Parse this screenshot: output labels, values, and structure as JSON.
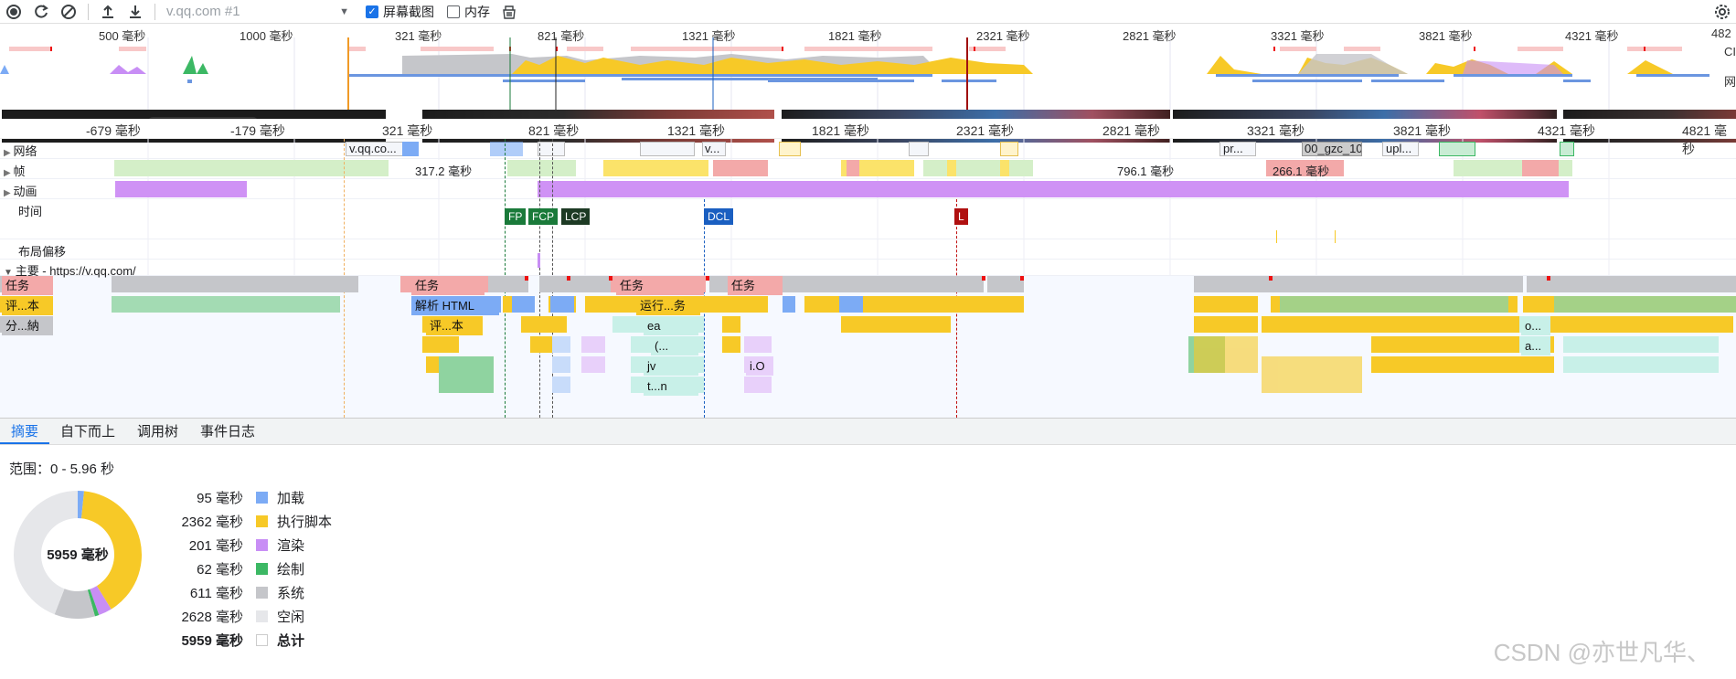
{
  "toolbar": {
    "url_select": "v.qq.com #1",
    "screenshots_label": "屏幕截图",
    "screenshots_checked": true,
    "memory_label": "内存",
    "memory_checked": false
  },
  "overview": {
    "ticks": [
      "500 毫秒",
      "1000 毫秒",
      "321 毫秒",
      "821 毫秒",
      "1321 毫秒",
      "1821 毫秒",
      "2321 毫秒",
      "2821 毫秒",
      "3321 毫秒",
      "3821 毫秒",
      "4321 毫秒",
      "482"
    ],
    "right_labels": [
      "CI",
      "网"
    ]
  },
  "main_ruler": {
    "ticks": [
      "-679 毫秒",
      "-179 毫秒",
      "321 毫秒",
      "821 毫秒",
      "1321 毫秒",
      "1821 毫秒",
      "2321 毫秒",
      "2821 毫秒",
      "3321 毫秒",
      "3821 毫秒",
      "4321 毫秒",
      "4821 毫秒"
    ]
  },
  "tracks": {
    "network": "网络",
    "frames": "帧",
    "animations": "动画",
    "timings": "时间",
    "layout_shifts": "布局偏移",
    "main": "主要 - https://v.qq.com/"
  },
  "network_items": [
    "v.qq.co...",
    "v...",
    "pr...",
    "00_gzc_10",
    "upl..."
  ],
  "frame_labels": [
    "317.2 毫秒",
    "796.1 毫秒",
    "266.1 毫秒"
  ],
  "markers": [
    "FP",
    "FCP",
    "LCP",
    "DCL",
    "L"
  ],
  "flame": {
    "task": "任务",
    "eval_short": "评...本",
    "gc_short": "分...納",
    "parse_html": "解析 HTML",
    "run_short": "运行...务",
    "eval2": "评...本",
    "ea": "ea",
    "paren": "(...",
    "jv": "jv",
    "tn": "t...n",
    "io": "i.O",
    "o_short": "o...",
    "a_short": "a..."
  },
  "tabs": [
    "摘要",
    "自下而上",
    "调用树",
    "事件日志"
  ],
  "summary": {
    "range": "范围：0 - 5.96 秒",
    "total_center": "5959 毫秒",
    "rows": [
      {
        "value": "95 毫秒",
        "label": "加载",
        "color": "#7cabf5"
      },
      {
        "value": "2362 毫秒",
        "label": "执行脚本",
        "color": "#f7c927"
      },
      {
        "value": "201 毫秒",
        "label": "渲染",
        "color": "#c88ef5"
      },
      {
        "value": "62 毫秒",
        "label": "绘制",
        "color": "#3cb864"
      },
      {
        "value": "611 毫秒",
        "label": "系统",
        "color": "#c5c6ca"
      },
      {
        "value": "2628 毫秒",
        "label": "空闲",
        "color": "#e6e7ea"
      },
      {
        "value": "5959 毫秒",
        "label": "总计",
        "color": "#ffffff"
      }
    ],
    "donut_ms": [
      95,
      2362,
      201,
      62,
      611,
      2628
    ]
  },
  "watermark": "CSDN @亦世凡华、"
}
